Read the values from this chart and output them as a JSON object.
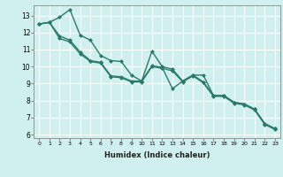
{
  "xlabel": "Humidex (Indice chaleur)",
  "xlim": [
    -0.5,
    23.5
  ],
  "ylim": [
    5.8,
    13.6
  ],
  "yticks": [
    6,
    7,
    8,
    9,
    10,
    11,
    12,
    13
  ],
  "xticks": [
    0,
    1,
    2,
    3,
    4,
    5,
    6,
    7,
    8,
    9,
    10,
    11,
    12,
    13,
    14,
    15,
    16,
    17,
    18,
    19,
    20,
    21,
    22,
    23
  ],
  "bg_color": "#d0f0f0",
  "grid_color": "#ffffff",
  "line_color": "#2a7a6a",
  "line1_x": [
    0,
    1,
    2,
    3,
    4,
    5,
    6,
    7,
    8,
    9,
    10,
    11,
    12,
    13,
    14,
    15,
    16,
    17,
    18,
    19,
    20,
    21,
    22,
    23
  ],
  "line1_y": [
    12.5,
    12.6,
    12.9,
    13.35,
    11.85,
    11.55,
    10.65,
    10.35,
    10.3,
    9.5,
    9.15,
    10.05,
    9.95,
    8.7,
    9.15,
    9.5,
    9.5,
    8.3,
    8.3,
    7.9,
    7.8,
    7.5,
    6.65,
    6.35
  ],
  "line2_x": [
    0,
    1,
    2,
    3,
    4,
    5,
    6,
    7,
    8,
    9,
    10,
    11,
    12,
    13,
    14,
    15,
    16,
    17,
    18,
    19,
    20,
    21,
    22,
    23
  ],
  "line2_y": [
    12.5,
    12.6,
    11.8,
    11.55,
    10.85,
    10.35,
    10.25,
    9.45,
    9.4,
    9.15,
    9.15,
    10.9,
    10.0,
    9.85,
    9.15,
    9.5,
    9.1,
    8.3,
    8.3,
    7.9,
    7.8,
    7.5,
    6.65,
    6.35
  ],
  "line3_x": [
    0,
    1,
    2,
    3,
    4,
    5,
    6,
    7,
    8,
    9,
    10,
    11,
    12,
    13,
    14,
    15,
    16,
    17,
    18,
    19,
    20,
    21,
    22,
    23
  ],
  "line3_y": [
    12.5,
    12.6,
    11.65,
    11.45,
    10.75,
    10.3,
    10.2,
    9.4,
    9.35,
    9.1,
    9.1,
    10.0,
    9.9,
    9.75,
    9.1,
    9.45,
    9.05,
    8.25,
    8.25,
    7.85,
    7.75,
    7.45,
    6.6,
    6.3
  ],
  "marker_size": 2.5,
  "line_width": 1.0,
  "xtick_fontsize": 4.5,
  "ytick_fontsize": 5.5,
  "xlabel_fontsize": 6.0
}
